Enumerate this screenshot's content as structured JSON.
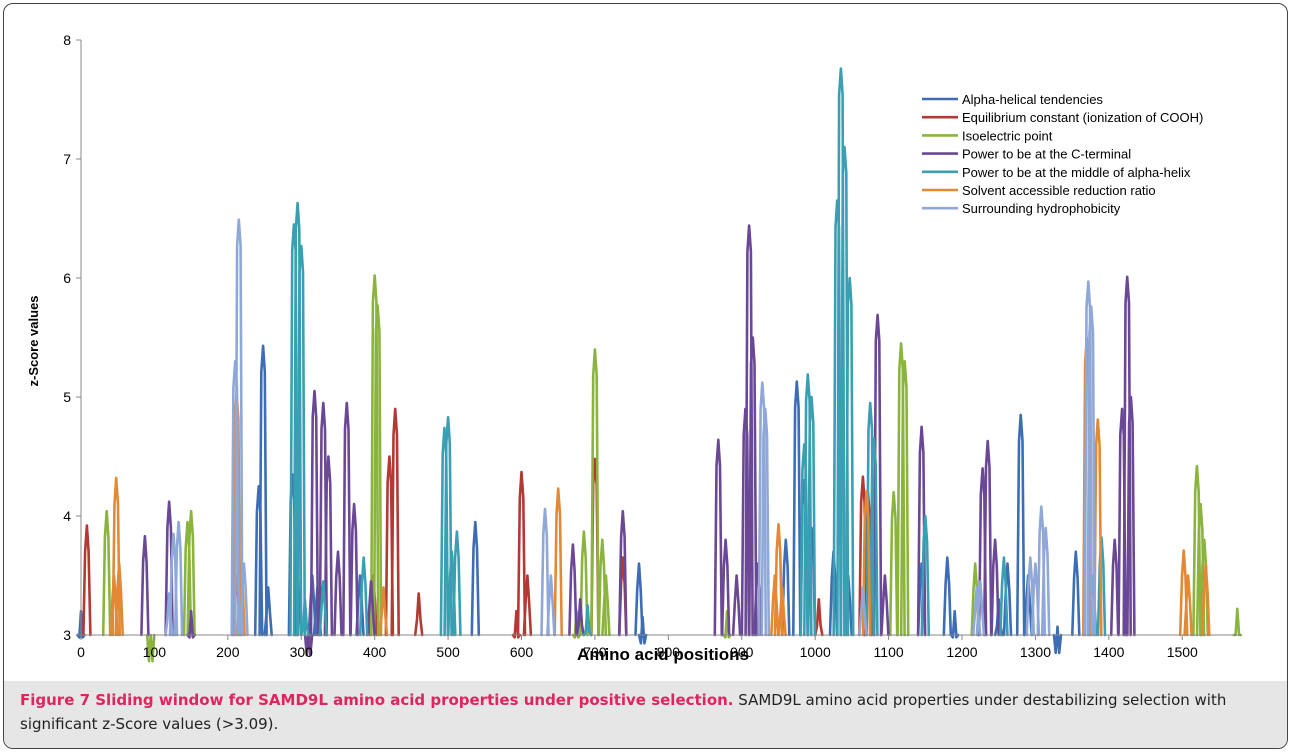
{
  "figure": {
    "caption_lead": "Figure 7 Sliding window for SAMD9L amino acid properties under positive selection.",
    "caption_body": " SAMD9L amino acid properties under destabilizing selection with significant z-Score values (>3.09)."
  },
  "chart_data": {
    "type": "line",
    "xlabel": "Amino acid positions",
    "ylabel": "z-Score values",
    "xlim": [
      0,
      1580
    ],
    "ylim": [
      3,
      8
    ],
    "x_ticks": [
      0,
      100,
      200,
      300,
      400,
      500,
      600,
      700,
      800,
      900,
      1000,
      1100,
      1200,
      1300,
      1400,
      1500
    ],
    "y_ticks": [
      3,
      4,
      5,
      6,
      7,
      8
    ],
    "legend_position": "top-right",
    "series": [
      {
        "name": "Alpha-helical tendencies",
        "color": "#3d6db5",
        "peaks": [
          [
            0,
            3.2
          ],
          [
            242,
            4.25
          ],
          [
            248,
            5.43
          ],
          [
            255,
            3.4
          ],
          [
            288,
            4.35
          ],
          [
            295,
            3.5
          ],
          [
            315,
            3.5
          ],
          [
            322,
            3.4
          ],
          [
            380,
            3.5
          ],
          [
            537,
            3.95
          ],
          [
            760,
            3.6
          ],
          [
            765,
            3.15
          ],
          [
            960,
            3.8
          ],
          [
            975,
            5.13
          ],
          [
            985,
            4.3
          ],
          [
            995,
            3.9
          ],
          [
            1025,
            3.7
          ],
          [
            1045,
            3.5
          ],
          [
            1145,
            3.6
          ],
          [
            1180,
            3.65
          ],
          [
            1190,
            3.2
          ],
          [
            1250,
            3.3
          ],
          [
            1262,
            3.6
          ],
          [
            1280,
            4.85
          ],
          [
            1290,
            3.5
          ],
          [
            1330,
            3.07
          ],
          [
            1355,
            3.7
          ]
        ]
      },
      {
        "name": "Equilibrium constant (ionization of COOH)",
        "color": "#b23a35",
        "peaks": [
          [
            8,
            3.92
          ],
          [
            212,
            3.5
          ],
          [
            398,
            3.5
          ],
          [
            420,
            4.5
          ],
          [
            428,
            4.9
          ],
          [
            460,
            3.35
          ],
          [
            593,
            3.2
          ],
          [
            600,
            4.37
          ],
          [
            608,
            3.5
          ],
          [
            700,
            4.48
          ],
          [
            738,
            3.65
          ],
          [
            1005,
            3.3
          ],
          [
            1065,
            4.33
          ],
          [
            1072,
            4.2
          ]
        ]
      },
      {
        "name": "Isoelectric point",
        "color": "#8bb43f",
        "peaks": [
          [
            35,
            4.04
          ],
          [
            95,
            3.0
          ],
          [
            145,
            3.95
          ],
          [
            150,
            4.04
          ],
          [
            400,
            6.02
          ],
          [
            404,
            5.77
          ],
          [
            675,
            3.2
          ],
          [
            685,
            3.87
          ],
          [
            700,
            5.4
          ],
          [
            710,
            3.8
          ],
          [
            715,
            3.5
          ],
          [
            880,
            3.2
          ],
          [
            1107,
            4.2
          ],
          [
            1117,
            5.45
          ],
          [
            1122,
            5.3
          ],
          [
            1218,
            3.6
          ],
          [
            1520,
            4.42
          ],
          [
            1525,
            4.1
          ],
          [
            1530,
            3.8
          ],
          [
            1575,
            3.22
          ]
        ]
      },
      {
        "name": "Power to be at the C-terminal",
        "color": "#6b4896",
        "peaks": [
          [
            87,
            3.83
          ],
          [
            120,
            4.12
          ],
          [
            150,
            3.2
          ],
          [
            310,
            3.05
          ],
          [
            318,
            5.05
          ],
          [
            330,
            4.95
          ],
          [
            337,
            4.5
          ],
          [
            350,
            3.7
          ],
          [
            362,
            4.95
          ],
          [
            372,
            4.1
          ],
          [
            395,
            3.45
          ],
          [
            670,
            3.76
          ],
          [
            680,
            3.3
          ],
          [
            738,
            4.04
          ],
          [
            868,
            4.64
          ],
          [
            878,
            3.8
          ],
          [
            893,
            3.5
          ],
          [
            905,
            4.9
          ],
          [
            910,
            6.44
          ],
          [
            915,
            5.5
          ],
          [
            922,
            3.6
          ],
          [
            1085,
            5.69
          ],
          [
            1095,
            3.5
          ],
          [
            1145,
            4.75
          ],
          [
            1228,
            4.4
          ],
          [
            1235,
            4.63
          ],
          [
            1245,
            3.8
          ],
          [
            1408,
            3.8
          ],
          [
            1418,
            4.9
          ],
          [
            1425,
            6.01
          ],
          [
            1430,
            5.0
          ]
        ]
      },
      {
        "name": "Power to be at the middle of alpha-helix",
        "color": "#3a9fb2",
        "peaks": [
          [
            290,
            6.45
          ],
          [
            295,
            6.63
          ],
          [
            300,
            6.27
          ],
          [
            305,
            3.3
          ],
          [
            330,
            3.45
          ],
          [
            385,
            3.65
          ],
          [
            495,
            4.74
          ],
          [
            500,
            4.83
          ],
          [
            505,
            3.7
          ],
          [
            512,
            3.87
          ],
          [
            690,
            3.25
          ],
          [
            985,
            4.6
          ],
          [
            990,
            5.19
          ],
          [
            995,
            5.0
          ],
          [
            1030,
            6.65
          ],
          [
            1035,
            7.76
          ],
          [
            1040,
            7.1
          ],
          [
            1047,
            6.0
          ],
          [
            1075,
            4.95
          ],
          [
            1080,
            4.65
          ],
          [
            1150,
            4.0
          ],
          [
            1257,
            3.65
          ],
          [
            1378,
            3.5
          ],
          [
            1390,
            3.82
          ]
        ]
      },
      {
        "name": "Solvent accessible reduction ratio",
        "color": "#e38934",
        "peaks": [
          [
            45,
            3.5
          ],
          [
            48,
            4.32
          ],
          [
            52,
            3.6
          ],
          [
            212,
            5.03
          ],
          [
            218,
            3.6
          ],
          [
            412,
            3.4
          ],
          [
            650,
            4.23
          ],
          [
            945,
            3.5
          ],
          [
            950,
            3.93
          ],
          [
            955,
            3.4
          ],
          [
            1070,
            4.21
          ],
          [
            1370,
            5.5
          ],
          [
            1385,
            4.81
          ],
          [
            1502,
            3.71
          ],
          [
            1508,
            3.5
          ],
          [
            1532,
            3.59
          ]
        ]
      },
      {
        "name": "Surrounding hydrophobicity",
        "color": "#8fa8d8",
        "peaks": [
          [
            120,
            3.35
          ],
          [
            126,
            3.85
          ],
          [
            133,
            3.95
          ],
          [
            210,
            5.3
          ],
          [
            215,
            6.49
          ],
          [
            222,
            3.6
          ],
          [
            632,
            4.06
          ],
          [
            640,
            3.5
          ],
          [
            928,
            5.12
          ],
          [
            932,
            4.9
          ],
          [
            1065,
            3.4
          ],
          [
            1220,
            3.4
          ],
          [
            1225,
            3.45
          ],
          [
            1293,
            3.65
          ],
          [
            1300,
            3.6
          ],
          [
            1308,
            4.08
          ],
          [
            1314,
            3.9
          ],
          [
            1372,
            5.97
          ],
          [
            1376,
            5.76
          ]
        ]
      }
    ]
  }
}
